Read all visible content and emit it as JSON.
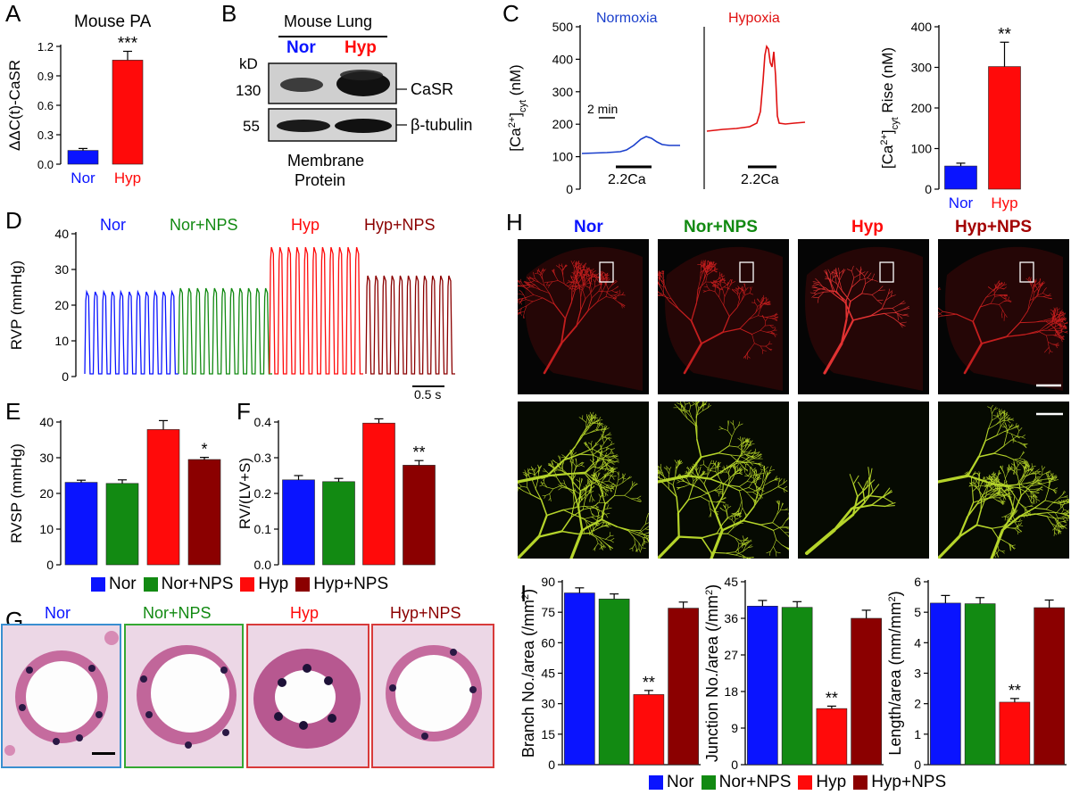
{
  "colors": {
    "nor": "#0a14ff",
    "norNPS": "#128a12",
    "hyp": "#ff0a0a",
    "hypNPS": "#8b0000",
    "trace_nor": "#1a3fcc",
    "trace_hyp": "#e01010"
  },
  "panels": {
    "A": {
      "label": "A",
      "title": "Mouse PA"
    },
    "B": {
      "label": "B",
      "title": "Mouse Lung",
      "lanes": [
        "Nor",
        "Hyp"
      ],
      "kd_label": "kD",
      "kd_marks": [
        "130",
        "55"
      ],
      "bands": [
        "CaSR",
        "β-tubulin"
      ],
      "caption_1": "Membrane",
      "caption_2": "Protein"
    },
    "C": {
      "label": "C",
      "normoxia": "Normoxia",
      "hypoxia": "Hypoxia",
      "scale_bar": "2 min",
      "treatment_1": "2.2Ca",
      "treatment_2": "2.2Ca"
    },
    "D": {
      "label": "D",
      "groups": [
        "Nor",
        "Nor+NPS",
        "Hyp",
        "Hyp+NPS"
      ],
      "scale_bar": "0.5 s"
    },
    "E": {
      "label": "E"
    },
    "F": {
      "label": "F"
    },
    "G": {
      "label": "G",
      "groups": [
        "Nor",
        "Nor+NPS",
        "Hyp",
        "Hyp+NPS"
      ]
    },
    "H": {
      "label": "H",
      "groups": [
        "Nor",
        "Nor+NPS",
        "Hyp",
        "Hyp+NPS"
      ]
    },
    "I": {
      "label": "I"
    }
  },
  "legend_EF": {
    "items": [
      "Nor",
      "Nor+NPS",
      "Hyp",
      "Hyp+NPS"
    ]
  },
  "legend_I": {
    "items": [
      "Nor",
      "Nor+NPS",
      "Hyp",
      "Hyp+NPS"
    ]
  },
  "chart_data": [
    {
      "id": "A",
      "type": "bar",
      "categories": [
        "Nor",
        "Hyp"
      ],
      "values": [
        0.14,
        1.06
      ],
      "errors": [
        0.02,
        0.09
      ],
      "ylabel": "ΔΔC(t)-CaSR",
      "ylim": [
        0,
        1.2
      ],
      "yticks": [
        "0.0",
        "0.3",
        "0.6",
        "0.9",
        "1.2"
      ],
      "significance": [
        "",
        "***"
      ]
    },
    {
      "id": "C_left",
      "type": "line",
      "ylabel": "[Ca2+]cyt (nM)",
      "ylim": [
        0,
        500
      ],
      "yticks": [
        "0",
        "100",
        "200",
        "300",
        "400",
        "500"
      ]
    },
    {
      "id": "C_right",
      "type": "bar",
      "categories": [
        "Nor",
        "Hyp"
      ],
      "values": [
        57,
        302
      ],
      "errors": [
        7,
        60
      ],
      "ylabel": "[Ca2+]cyt Rise (nM)",
      "ylim": [
        0,
        400
      ],
      "yticks": [
        "0",
        "100",
        "200",
        "300",
        "400"
      ],
      "significance": [
        "",
        "**"
      ]
    },
    {
      "id": "D",
      "type": "line",
      "ylabel": "RVP (mmHg)",
      "ylim": [
        0,
        40
      ],
      "yticks": [
        "0",
        "10",
        "20",
        "30",
        "40"
      ]
    },
    {
      "id": "E",
      "type": "bar",
      "categories": [
        "Nor",
        "Nor+NPS",
        "Hyp",
        "Hyp+NPS"
      ],
      "values": [
        23.1,
        22.8,
        37.9,
        29.5
      ],
      "errors": [
        0.6,
        1.0,
        2.5,
        0.6
      ],
      "ylabel": "RVSP (mmHg)",
      "ylim": [
        0,
        40
      ],
      "yticks": [
        "0",
        "10",
        "20",
        "30",
        "40"
      ],
      "significance": [
        "",
        "",
        "",
        "*"
      ]
    },
    {
      "id": "F",
      "type": "bar",
      "categories": [
        "Nor",
        "Nor+NPS",
        "Hyp",
        "Hyp+NPS"
      ],
      "values": [
        0.238,
        0.233,
        0.397,
        0.279
      ],
      "errors": [
        0.012,
        0.009,
        0.012,
        0.013
      ],
      "ylabel": "RV/(LV+S)",
      "ylim": [
        0,
        0.4
      ],
      "yticks": [
        "0.0",
        "0.1",
        "0.2",
        "0.3",
        "0.4"
      ],
      "significance": [
        "",
        "",
        "",
        "**"
      ]
    },
    {
      "id": "I_branch",
      "type": "bar",
      "categories": [
        "Nor",
        "Nor+NPS",
        "Hyp",
        "Hyp+NPS"
      ],
      "values": [
        84.5,
        81.5,
        34.5,
        77.0
      ],
      "errors": [
        2.5,
        2.5,
        2.0,
        3.0
      ],
      "ylabel": "Branch No./area (/mm2)",
      "ylim": [
        0,
        90
      ],
      "yticks": [
        "0",
        "15",
        "30",
        "45",
        "60",
        "75",
        "90"
      ],
      "significance": [
        "",
        "",
        "**",
        ""
      ]
    },
    {
      "id": "I_junction",
      "type": "bar",
      "categories": [
        "Nor",
        "Nor+NPS",
        "Hyp",
        "Hyp+NPS"
      ],
      "values": [
        39.0,
        38.7,
        13.8,
        36.0
      ],
      "errors": [
        1.4,
        1.4,
        0.6,
        2.0
      ],
      "ylabel": "Junction No./area (/mm2)",
      "ylim": [
        0,
        45
      ],
      "yticks": [
        "0",
        "9",
        "18",
        "27",
        "36",
        "45"
      ],
      "significance": [
        "",
        "",
        "**",
        ""
      ]
    },
    {
      "id": "I_length",
      "type": "bar",
      "categories": [
        "Nor",
        "Nor+NPS",
        "Hyp",
        "Hyp+NPS"
      ],
      "values": [
        5.3,
        5.28,
        2.05,
        5.15
      ],
      "errors": [
        0.25,
        0.2,
        0.12,
        0.25
      ],
      "ylabel": "Length/area (mm/mm2)",
      "ylim": [
        0,
        6
      ],
      "yticks": [
        "0",
        "1",
        "2",
        "3",
        "4",
        "5",
        "6"
      ],
      "significance": [
        "",
        "",
        "**",
        ""
      ]
    }
  ]
}
